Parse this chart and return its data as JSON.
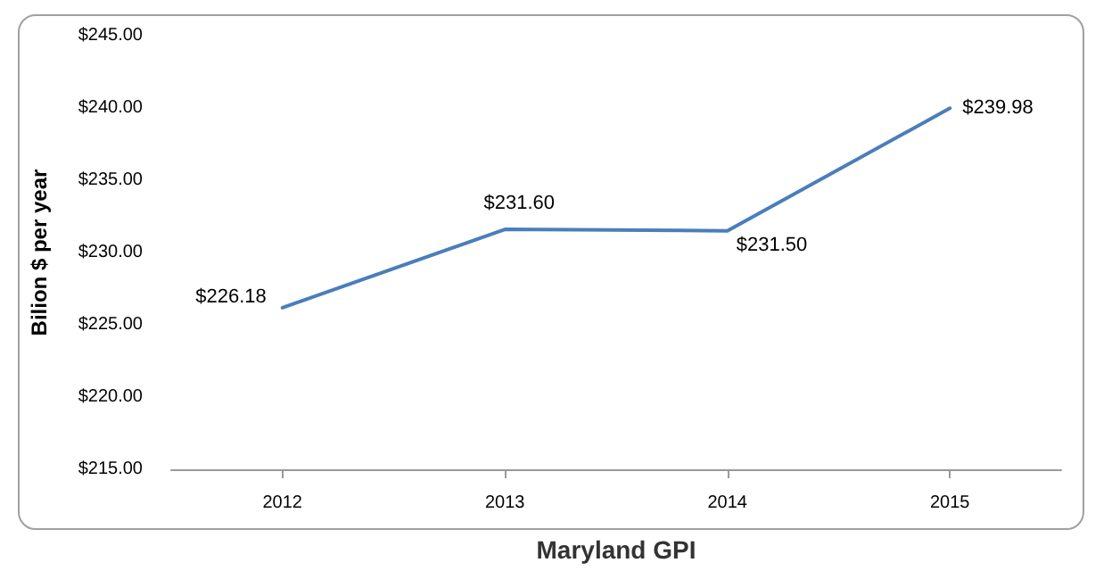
{
  "chart_data": {
    "type": "line",
    "xlabel": "Maryland GPI",
    "ylabel": "Bilion $ per year",
    "categories": [
      "2012",
      "2013",
      "2014",
      "2015"
    ],
    "series": [
      {
        "color": "#4a7ebb",
        "values": [
          226.18,
          231.6,
          231.5,
          239.98
        ],
        "value_labels": [
          "$226.18",
          "$231.60",
          "$231.50",
          "$239.98"
        ]
      }
    ],
    "ylim": [
      215,
      245
    ],
    "yticks": [
      {
        "value": 215,
        "label": "$215.00"
      },
      {
        "value": 220,
        "label": "$220.00"
      },
      {
        "value": 225,
        "label": "$225.00"
      },
      {
        "value": 230,
        "label": "$230.00"
      },
      {
        "value": 235,
        "label": "$235.00"
      },
      {
        "value": 240,
        "label": "$240.00"
      },
      {
        "value": 245,
        "label": "$245.00"
      }
    ],
    "grid": false,
    "marker": "none",
    "line_style": "solid"
  }
}
